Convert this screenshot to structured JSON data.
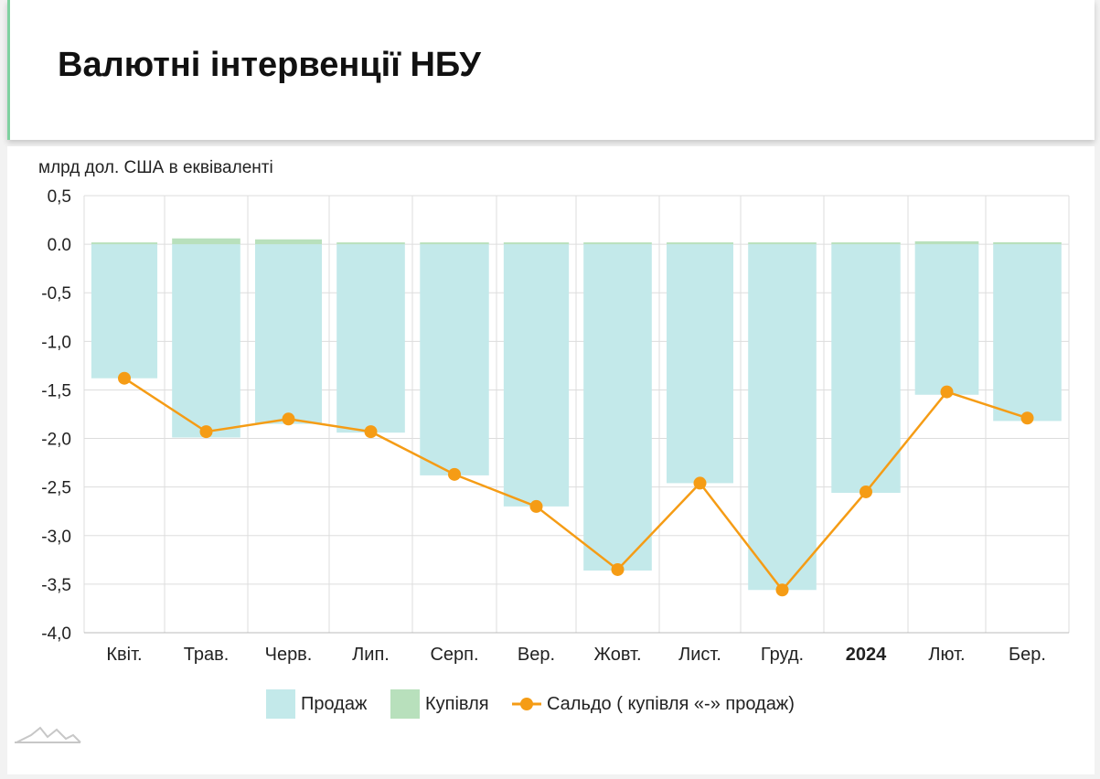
{
  "page": {
    "title": "Валютні інтервенції НБУ"
  },
  "colors": {
    "sales": "#c3e9ea",
    "purchases": "#b8e0bc",
    "balance": "#f59c15",
    "grid": "#dddddd",
    "header_accent": "#7fd1a0"
  },
  "chart_data": {
    "type": "bar",
    "title": "",
    "ylabel": "млрд дол. США в еквіваленті",
    "xlabel": "",
    "ylim": [
      -4.0,
      0.5
    ],
    "yticks": [
      "0,5",
      "0.0",
      "-0,5",
      "-1,0",
      "-1,5",
      "-2,0",
      "-2,5",
      "-3,0",
      "-3,5",
      "-4,0"
    ],
    "ytick_values": [
      0.5,
      0.0,
      -0.5,
      -1.0,
      -1.5,
      -2.0,
      -2.5,
      -3.0,
      -3.5,
      -4.0
    ],
    "grid": true,
    "legend_position": "bottom",
    "categories": [
      "Квіт.",
      "Трав.",
      "Черв.",
      "Лип.",
      "Серп.",
      "Вер.",
      "Жовт.",
      "Лист.",
      "Груд.",
      "2024",
      "Лют.",
      "Бер."
    ],
    "bold_categories": [
      "2024"
    ],
    "series": [
      {
        "name": "Продаж",
        "type": "bar",
        "values": [
          -1.38,
          -1.99,
          -1.85,
          -1.94,
          -2.38,
          -2.7,
          -3.36,
          -2.46,
          -3.56,
          -2.56,
          -1.55,
          -1.82
        ]
      },
      {
        "name": "Купівля",
        "type": "bar",
        "values": [
          0.0,
          0.06,
          0.05,
          0.01,
          0.0,
          0.0,
          0.01,
          0.0,
          0.0,
          0.01,
          0.03,
          0.02
        ]
      },
      {
        "name": "Сальдо ( купівля «-» продаж)",
        "type": "line",
        "values": [
          -1.38,
          -1.93,
          -1.8,
          -1.93,
          -2.37,
          -2.7,
          -3.35,
          -2.46,
          -3.56,
          -2.55,
          -1.52,
          -1.79
        ]
      }
    ]
  }
}
